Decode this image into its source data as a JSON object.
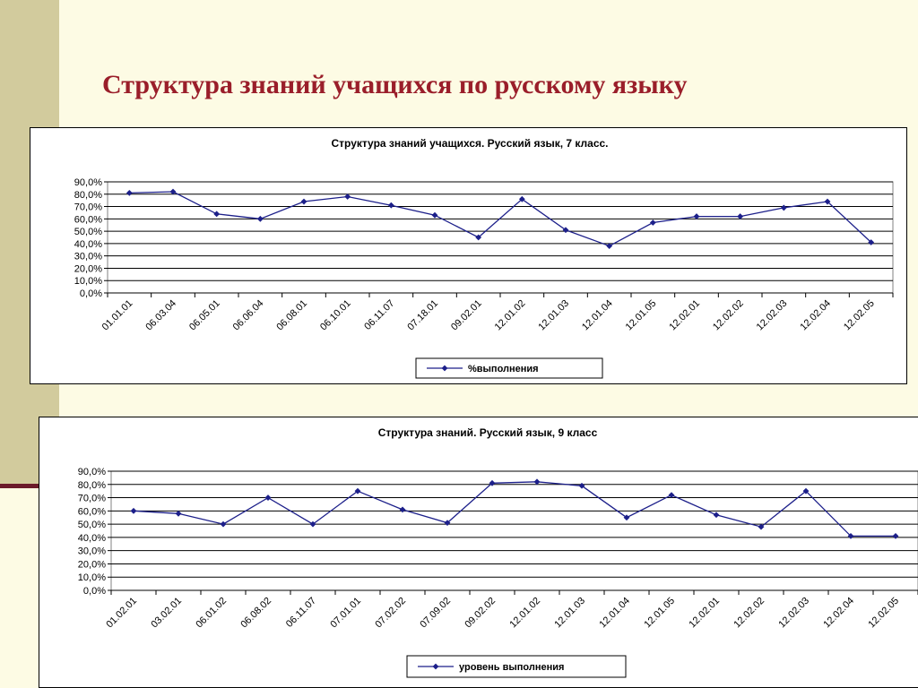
{
  "slide": {
    "title": "Структура знаний учащихся по русскому языку"
  },
  "colors": {
    "background": "#fdfbe4",
    "band": "#d2cb9d",
    "title": "#9a1e2a",
    "series": "#1c1f8a"
  },
  "chart_data": [
    {
      "type": "line",
      "title": "Структура знаний учащихся. Русский язык, 7 класс.",
      "categories": [
        "01.01.01",
        "06.03.04",
        "06.05.01",
        "06.06.04",
        "06.08.01",
        "06.10.01",
        "06.11.07",
        "07.18.01",
        "09.02.01",
        "12.01.02",
        "12.01.03",
        "12.01.04",
        "12.01.05",
        "12.02.01",
        "12.02.02",
        "12.02.03",
        "12.02.04",
        "12.02.05"
      ],
      "series": [
        {
          "name": "%выполнения",
          "values": [
            81,
            82,
            64,
            60,
            74,
            78,
            71,
            63,
            45,
            76,
            51,
            38,
            57,
            62,
            62,
            69,
            74,
            41
          ]
        }
      ],
      "y_ticks": [
        "90,0%",
        "80,0%",
        "70,0%",
        "60,0%",
        "50,0%",
        "40,0%",
        "30,0%",
        "20,0%",
        "10,0%",
        "0,0%"
      ],
      "ylim": [
        0,
        90
      ],
      "grid": true,
      "legend": "bottom"
    },
    {
      "type": "line",
      "title": "Структура знаний. Русский язык, 9 класс",
      "categories": [
        "01.02.01",
        "03.02.01",
        "06.01.02",
        "06.08.02",
        "06.11.07",
        "07.01.01",
        "07.02.02",
        "07.09.02",
        "09.02.02",
        "12.01.02",
        "12.01.03",
        "12.01.04",
        "12.01.05",
        "12.02.01",
        "12.02.02",
        "12.02.03",
        "12.02.04",
        "12.02.05"
      ],
      "series": [
        {
          "name": "уровень выполнения",
          "values": [
            60,
            58,
            50,
            70,
            50,
            75,
            61,
            51,
            81,
            82,
            79,
            55,
            72,
            57,
            48,
            75,
            41,
            41
          ]
        }
      ],
      "y_ticks": [
        "90,0%",
        "80,0%",
        "70,0%",
        "60,0%",
        "50,0%",
        "40,0%",
        "30,0%",
        "20,0%",
        "10,0%",
        "0,0%"
      ],
      "ylim": [
        0,
        90
      ],
      "grid": true,
      "legend": "bottom"
    }
  ]
}
